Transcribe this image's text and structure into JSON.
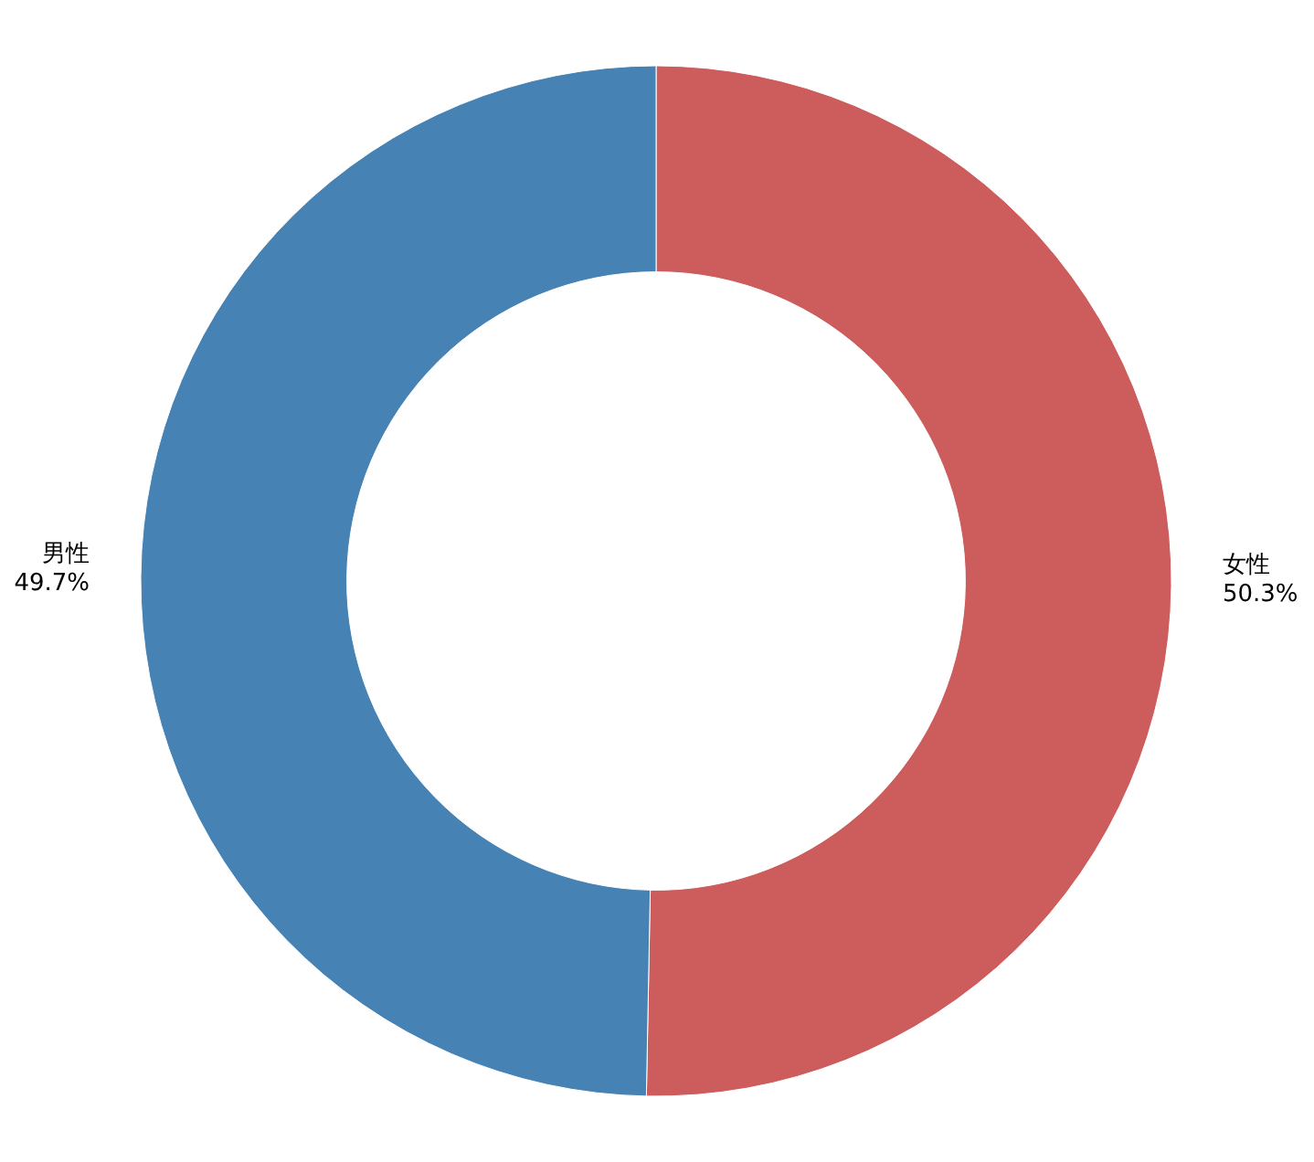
{
  "chart_data": {
    "type": "donut",
    "categories": [
      "女性",
      "男性"
    ],
    "values": [
      50.3,
      49.7
    ],
    "colors": [
      "#cd5c5c",
      "#4682b4"
    ],
    "value_labels": [
      "50.3%",
      "49.7%"
    ]
  }
}
